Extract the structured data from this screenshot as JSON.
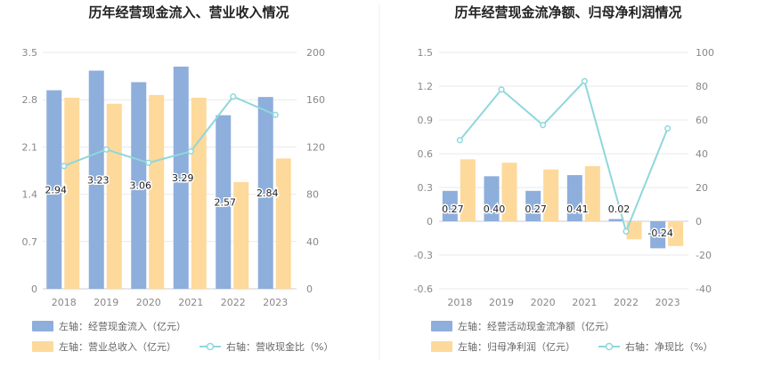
{
  "colors": {
    "bar_primary": "#8eaedc",
    "bar_secondary": "#fdd99b",
    "line": "#8fd7dc",
    "divider": "#eeeeee"
  },
  "chart_data": [
    {
      "type": "bar",
      "title": "历年经营现金流入、营业收入情况",
      "categories": [
        "2018",
        "2019",
        "2020",
        "2021",
        "2022",
        "2023"
      ],
      "left_axis": {
        "ylim": [
          0,
          3.5
        ],
        "ticks": [
          "0",
          "0.7",
          "1.4",
          "2.1",
          "2.8",
          "3.5"
        ]
      },
      "right_axis": {
        "ylim": [
          0,
          200
        ],
        "ticks": [
          "0",
          "40",
          "80",
          "120",
          "160",
          "200"
        ]
      },
      "series": [
        {
          "name": "左轴：经营现金流入（亿元）",
          "axis": "left",
          "kind": "bar",
          "values": [
            2.94,
            3.23,
            3.06,
            3.29,
            2.57,
            2.84
          ],
          "labels": [
            "2.94",
            "3.23",
            "3.06",
            "3.29",
            "2.57",
            "2.84"
          ]
        },
        {
          "name": "左轴：营业总收入（亿元）",
          "axis": "left",
          "kind": "bar",
          "values": [
            2.83,
            2.74,
            2.87,
            2.83,
            1.58,
            1.93
          ]
        },
        {
          "name": "右轴：营收现金比（%）",
          "axis": "right",
          "kind": "line",
          "values": [
            103.9,
            117.9,
            106.6,
            116.3,
            162.7,
            147.2
          ]
        }
      ]
    },
    {
      "type": "bar",
      "title": "历年经营现金流净额、归母净利润情况",
      "categories": [
        "2018",
        "2019",
        "2020",
        "2021",
        "2022",
        "2023"
      ],
      "left_axis": {
        "ylim": [
          -0.6,
          1.5
        ],
        "ticks": [
          "-0.6",
          "-0.3",
          "0",
          "0.3",
          "0.6",
          "0.9",
          "1.2",
          "1.5"
        ]
      },
      "right_axis": {
        "ylim": [
          -40,
          100
        ],
        "ticks": [
          "-40",
          "-20",
          "0",
          "20",
          "40",
          "60",
          "80",
          "100"
        ]
      },
      "series": [
        {
          "name": "左轴：经营活动现金流净额（亿元）",
          "axis": "left",
          "kind": "bar",
          "values": [
            0.27,
            0.4,
            0.27,
            0.41,
            0.02,
            -0.24
          ],
          "labels": [
            "0.27",
            "0.40",
            "0.27",
            "0.41",
            "0.02",
            "-0.24"
          ]
        },
        {
          "name": "左轴：归母净利润（亿元）",
          "axis": "left",
          "kind": "bar",
          "values": [
            0.55,
            0.52,
            0.46,
            0.49,
            -0.16,
            -0.22
          ]
        },
        {
          "name": "右轴：净现比（%）",
          "axis": "right",
          "kind": "line",
          "values": [
            48,
            78,
            57,
            83,
            -6,
            55
          ]
        }
      ]
    }
  ]
}
